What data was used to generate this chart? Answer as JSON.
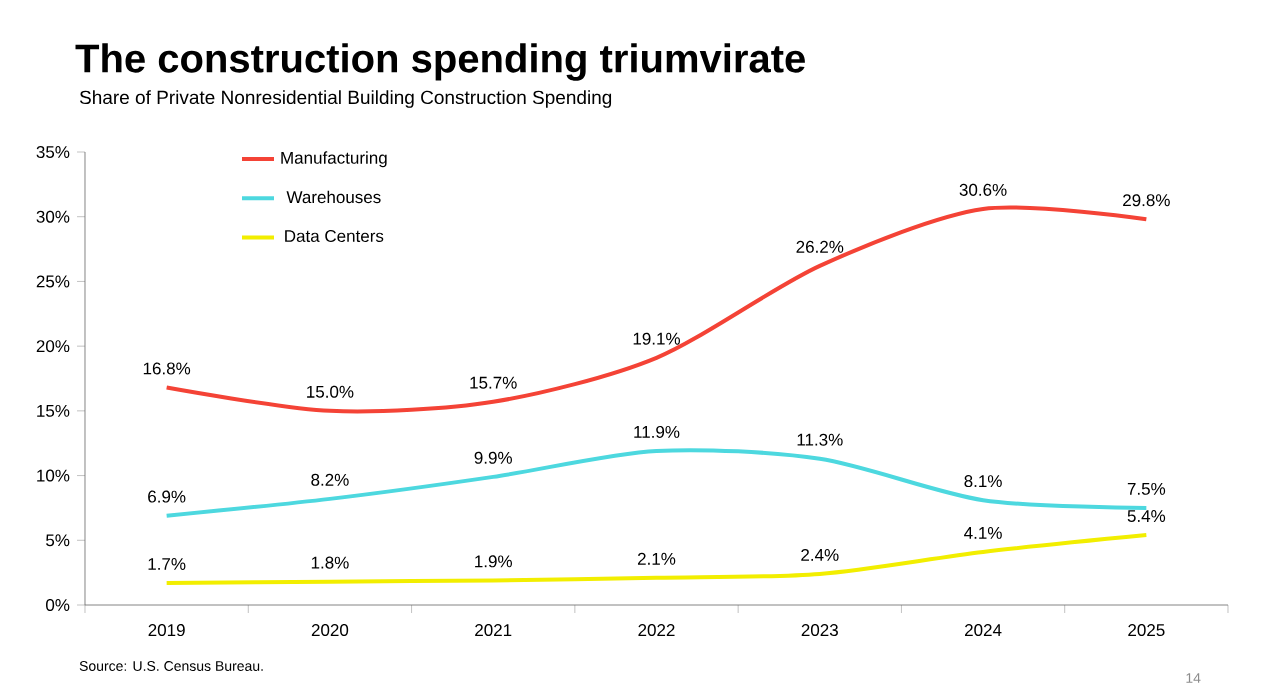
{
  "chart_data": {
    "type": "line",
    "title": "The construction spending triumvirate",
    "subtitle": "Share of Private Nonresidential Building Construction Spending",
    "categories": [
      "2019",
      "2020",
      "2021",
      "2022",
      "2023",
      "2024",
      "2025"
    ],
    "series": [
      {
        "name": "Manufacturing",
        "color": "#f44336",
        "values": [
          16.8,
          15.0,
          15.7,
          19.1,
          26.2,
          30.6,
          29.8
        ],
        "value_labels": [
          "16.8%",
          "15.0%",
          "15.7%",
          "19.1%",
          "26.2%",
          "30.6%",
          "29.8%"
        ]
      },
      {
        "name": "Warehouses",
        "color": "#4dd8df",
        "values": [
          6.9,
          8.2,
          9.9,
          11.9,
          11.3,
          8.1,
          7.5
        ],
        "value_labels": [
          "6.9%",
          "8.2%",
          "9.9%",
          "11.9%",
          "11.3%",
          "8.1%",
          "7.5%"
        ]
      },
      {
        "name": "Data Centers",
        "color": "#f2ee00",
        "values": [
          1.7,
          1.8,
          1.9,
          2.1,
          2.4,
          4.1,
          5.4
        ],
        "value_labels": [
          "1.7%",
          "1.8%",
          "1.9%",
          "2.1%",
          "2.4%",
          "4.1%",
          "5.4%"
        ]
      }
    ],
    "ylim": [
      0,
      35
    ],
    "yticks": [
      {
        "value": 0,
        "label": "0%"
      },
      {
        "value": 5,
        "label": "5%"
      },
      {
        "value": 10,
        "label": "10%"
      },
      {
        "value": 15,
        "label": "15%"
      },
      {
        "value": 20,
        "label": "20%"
      },
      {
        "value": 25,
        "label": "25%"
      },
      {
        "value": 30,
        "label": "30%"
      },
      {
        "value": 35,
        "label": "35%"
      }
    ],
    "grid": false,
    "legend": "top left",
    "marker": "none",
    "line_style": "solid",
    "annotations": [
      "Source: U.S. Census Bureau.",
      "14"
    ]
  }
}
